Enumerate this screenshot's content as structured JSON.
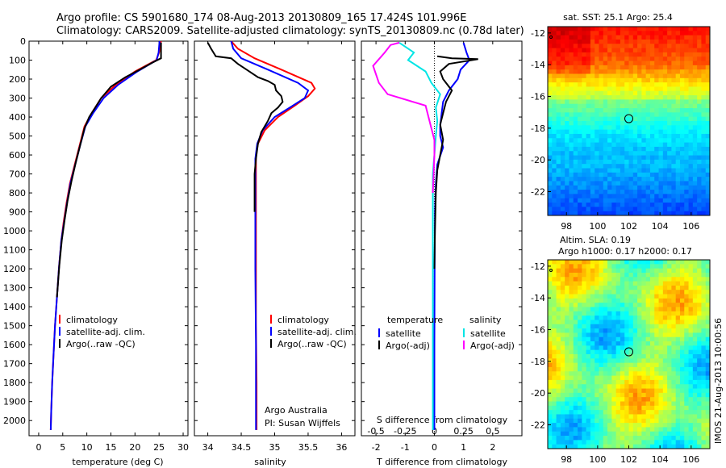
{
  "header": {
    "line1": "Argo profile: CS 5901680_174 08-Aug-2013 20130809_165 17.424S 101.996E",
    "line2": "Climatology: CARS2009. Satellite-adjusted climatology: synTS_20130809.nc (0.78d later)"
  },
  "colors": {
    "climatology": "#ff0000",
    "satellite": "#0000ff",
    "argo": "#000000",
    "sat_salinity": "#00e5e5",
    "argo_salinity": "#ff00ff"
  },
  "chart_data": [
    {
      "type": "line",
      "name": "temperature",
      "xlabel": "temperature (deg C)",
      "xlim": [
        -2,
        31
      ],
      "xticks": [
        0,
        5,
        10,
        15,
        20,
        25,
        30
      ],
      "ylim": [
        2080,
        0
      ],
      "yticks": [
        0,
        100,
        200,
        300,
        400,
        500,
        600,
        700,
        800,
        900,
        1000,
        1100,
        1200,
        1300,
        1400,
        1500,
        1600,
        1700,
        1800,
        1900,
        2000
      ],
      "legend": [
        "climatology",
        "satellite-adj. clim.",
        "Argo(..raw -QC)"
      ],
      "series": [
        {
          "name": "climatology",
          "color": "#ff0000",
          "points": [
            [
              25.4,
              0
            ],
            [
              25.0,
              60
            ],
            [
              24.4,
              100
            ],
            [
              20,
              160
            ],
            [
              16,
              230
            ],
            [
              13,
              300
            ],
            [
              11,
              380
            ],
            [
              9.5,
              450
            ],
            [
              8.5,
              550
            ],
            [
              7.5,
              650
            ],
            [
              6.5,
              750
            ],
            [
              5.8,
              850
            ],
            [
              5.2,
              950
            ],
            [
              4.7,
              1050
            ],
            [
              4.2,
              1200
            ],
            [
              3.8,
              1350
            ],
            [
              3.4,
              1500
            ],
            [
              3.1,
              1650
            ],
            [
              2.8,
              1800
            ],
            [
              2.6,
              1950
            ],
            [
              2.5,
              2050
            ]
          ]
        },
        {
          "name": "satellite-adj. clim.",
          "color": "#0000ff",
          "points": [
            [
              25.1,
              0
            ],
            [
              24.9,
              60
            ],
            [
              24.5,
              100
            ],
            [
              20.5,
              160
            ],
            [
              16.5,
              230
            ],
            [
              13.5,
              300
            ],
            [
              11.3,
              380
            ],
            [
              9.7,
              450
            ],
            [
              8.6,
              550
            ],
            [
              7.6,
              650
            ],
            [
              6.6,
              750
            ],
            [
              5.9,
              850
            ],
            [
              5.3,
              950
            ],
            [
              4.7,
              1050
            ],
            [
              4.2,
              1200
            ],
            [
              3.8,
              1350
            ],
            [
              3.4,
              1500
            ],
            [
              3.1,
              1650
            ],
            [
              2.8,
              1800
            ],
            [
              2.6,
              1950
            ],
            [
              2.5,
              2050
            ]
          ]
        },
        {
          "name": "Argo(..raw -QC)",
          "color": "#000000",
          "points": [
            [
              25.4,
              8
            ],
            [
              25.4,
              90
            ],
            [
              23.5,
              115
            ],
            [
              21,
              150
            ],
            [
              18,
              190
            ],
            [
              15,
              240
            ],
            [
              13,
              300
            ],
            [
              12,
              340
            ],
            [
              10.5,
              400
            ],
            [
              9.5,
              460
            ],
            [
              8.6,
              550
            ],
            [
              7.7,
              640
            ],
            [
              6.8,
              740
            ],
            [
              6.0,
              840
            ],
            [
              5.4,
              940
            ],
            [
              4.8,
              1050
            ],
            [
              4.3,
              1180
            ],
            [
              3.8,
              1350
            ]
          ]
        }
      ]
    },
    {
      "type": "line",
      "name": "salinity",
      "xlabel": "salinity",
      "xlim": [
        33.8,
        36.2
      ],
      "xticks": [
        34,
        34.5,
        35,
        35.5,
        36
      ],
      "xticklabels": [
        "34",
        "34.5",
        "35",
        "35.5",
        "36"
      ],
      "ylim": [
        2080,
        0
      ],
      "legend": [
        "climatology",
        "satellite-adj. clim.",
        "Argo(..raw -QC)"
      ],
      "annotation": [
        "Argo Australia",
        "PI: Susan Wijffels"
      ],
      "series": [
        {
          "name": "climatology",
          "color": "#ff0000",
          "points": [
            [
              34.35,
              0
            ],
            [
              34.45,
              40
            ],
            [
              34.7,
              90
            ],
            [
              35.1,
              150
            ],
            [
              35.55,
              220
            ],
            [
              35.6,
              250
            ],
            [
              35.5,
              290
            ],
            [
              35.3,
              340
            ],
            [
              35.05,
              400
            ],
            [
              34.85,
              470
            ],
            [
              34.75,
              540
            ],
            [
              34.72,
              600
            ],
            [
              34.72,
              700
            ],
            [
              34.72,
              900
            ],
            [
              34.72,
              1200
            ],
            [
              34.72,
              1500
            ],
            [
              34.73,
              1800
            ],
            [
              34.73,
              2050
            ]
          ]
        },
        {
          "name": "satellite-adj. clim.",
          "color": "#0000ff",
          "points": [
            [
              34.35,
              0
            ],
            [
              34.38,
              40
            ],
            [
              34.5,
              90
            ],
            [
              34.9,
              150
            ],
            [
              35.35,
              220
            ],
            [
              35.5,
              260
            ],
            [
              35.45,
              300
            ],
            [
              35.25,
              345
            ],
            [
              35.0,
              400
            ],
            [
              34.82,
              470
            ],
            [
              34.74,
              540
            ],
            [
              34.71,
              620
            ],
            [
              34.71,
              800
            ],
            [
              34.71,
              1200
            ],
            [
              34.72,
              1600
            ],
            [
              34.72,
              2050
            ]
          ]
        },
        {
          "name": "Argo(..raw -QC)",
          "color": "#000000",
          "points": [
            [
              34.0,
              8
            ],
            [
              34.05,
              40
            ],
            [
              34.12,
              80
            ],
            [
              34.35,
              90
            ],
            [
              34.45,
              120
            ],
            [
              34.58,
              150
            ],
            [
              34.75,
              190
            ],
            [
              34.9,
              210
            ],
            [
              35.0,
              230
            ],
            [
              35.02,
              260
            ],
            [
              35.1,
              290
            ],
            [
              35.12,
              320
            ],
            [
              35.05,
              350
            ],
            [
              34.95,
              380
            ],
            [
              34.9,
              420
            ],
            [
              34.8,
              480
            ],
            [
              34.75,
              540
            ],
            [
              34.72,
              620
            ],
            [
              34.7,
              700
            ],
            [
              34.7,
              800
            ],
            [
              34.7,
              900
            ]
          ]
        }
      ]
    },
    {
      "type": "line",
      "name": "difference",
      "xlabel": "T difference from climatology",
      "xlabel_top": "S difference from climatology",
      "xlim": [
        -2.5,
        3.0
      ],
      "xticks": [
        -2,
        -1,
        0,
        1,
        2
      ],
      "s_ticks": [
        -0.5,
        -0.25,
        0,
        0.25,
        0.5
      ],
      "s_ticklabels": [
        "-0.5",
        "-0.25",
        "0",
        "0.25",
        "0.5"
      ],
      "ylim": [
        2080,
        0
      ],
      "legend_groups": [
        "temperature",
        "salinity"
      ],
      "legend": [
        "satellite",
        "Argo(-adj)",
        "satellite",
        "Argo(-adj)"
      ],
      "series": [
        {
          "name": "temperature satellite",
          "color": "#0000ff",
          "points": [
            [
              1.0,
              8
            ],
            [
              1.1,
              60
            ],
            [
              1.2,
              100
            ],
            [
              0.9,
              150
            ],
            [
              0.8,
              200
            ],
            [
              0.5,
              260
            ],
            [
              0.3,
              320
            ],
            [
              0.25,
              380
            ],
            [
              0.2,
              450
            ],
            [
              0.2,
              500
            ],
            [
              0.3,
              560
            ],
            [
              0.1,
              650
            ],
            [
              0.05,
              750
            ],
            [
              0.02,
              900
            ],
            [
              0.01,
              1200
            ],
            [
              0.0,
              1600
            ],
            [
              0.0,
              2050
            ]
          ]
        },
        {
          "name": "temperature Argo(-adj)",
          "color": "#000000",
          "points": [
            [
              0.1,
              80
            ],
            [
              0.6,
              90
            ],
            [
              1.5,
              95
            ],
            [
              0.5,
              120
            ],
            [
              0.2,
              160
            ],
            [
              0.3,
              200
            ],
            [
              0.6,
              260
            ],
            [
              0.4,
              320
            ],
            [
              0.3,
              380
            ],
            [
              0.2,
              440
            ],
            [
              0.3,
              520
            ],
            [
              0.2,
              600
            ],
            [
              0.1,
              680
            ],
            [
              0.05,
              800
            ],
            [
              0.02,
              1000
            ],
            [
              0.0,
              1200
            ]
          ]
        },
        {
          "name": "salinity satellite",
          "color": "#00e5e5",
          "points": [
            [
              -1.2,
              8
            ],
            [
              -0.7,
              60
            ],
            [
              -0.9,
              100
            ],
            [
              -0.3,
              160
            ],
            [
              -0.1,
              220
            ],
            [
              0.2,
              280
            ],
            [
              0.05,
              350
            ],
            [
              0.1,
              420
            ],
            [
              0.05,
              500
            ],
            [
              0.0,
              600
            ],
            [
              -0.05,
              700
            ],
            [
              -0.05,
              900
            ],
            [
              -0.05,
              1200
            ],
            [
              -0.05,
              1600
            ],
            [
              -0.05,
              2050
            ]
          ]
        },
        {
          "name": "salinity Argo(-adj)",
          "color": "#ff00ff",
          "points": [
            [
              -1.2,
              8
            ],
            [
              -1.5,
              20
            ],
            [
              -1.7,
              60
            ],
            [
              -2.1,
              130
            ],
            [
              -1.9,
              220
            ],
            [
              -1.6,
              280
            ],
            [
              -0.3,
              340
            ],
            [
              -0.2,
              400
            ],
            [
              -0.1,
              460
            ],
            [
              0.0,
              520
            ],
            [
              0.0,
              600
            ],
            [
              -0.05,
              800
            ]
          ]
        }
      ]
    },
    {
      "type": "heatmap",
      "name": "sst-map",
      "title": "sat. SST: 25.1  Argo: 25.4",
      "xticks": [
        98,
        100,
        102,
        104,
        106
      ],
      "yticks": [
        -12,
        -14,
        -16,
        -18,
        -20,
        -22
      ],
      "xlim": [
        96.8,
        107.2
      ],
      "ylim": [
        -23.5,
        -11.6
      ],
      "marker": [
        102.0,
        -17.4
      ],
      "colormap": "jet"
    },
    {
      "type": "heatmap",
      "name": "sla-map",
      "title_line1": "Altim. SLA: 0.19",
      "title_line2": "Argo h1000: 0.17 h2000: 0.17",
      "xticks": [
        98,
        100,
        102,
        104,
        106
      ],
      "yticks": [
        -12,
        -14,
        -16,
        -18,
        -20,
        -22
      ],
      "xlim": [
        96.8,
        107.2
      ],
      "ylim": [
        -23.5,
        -11.6
      ],
      "marker": [
        102.0,
        -17.4
      ],
      "colormap": "jet"
    }
  ],
  "footer": {
    "credit": "IMOS 21-Aug-2013 10:00:56"
  }
}
